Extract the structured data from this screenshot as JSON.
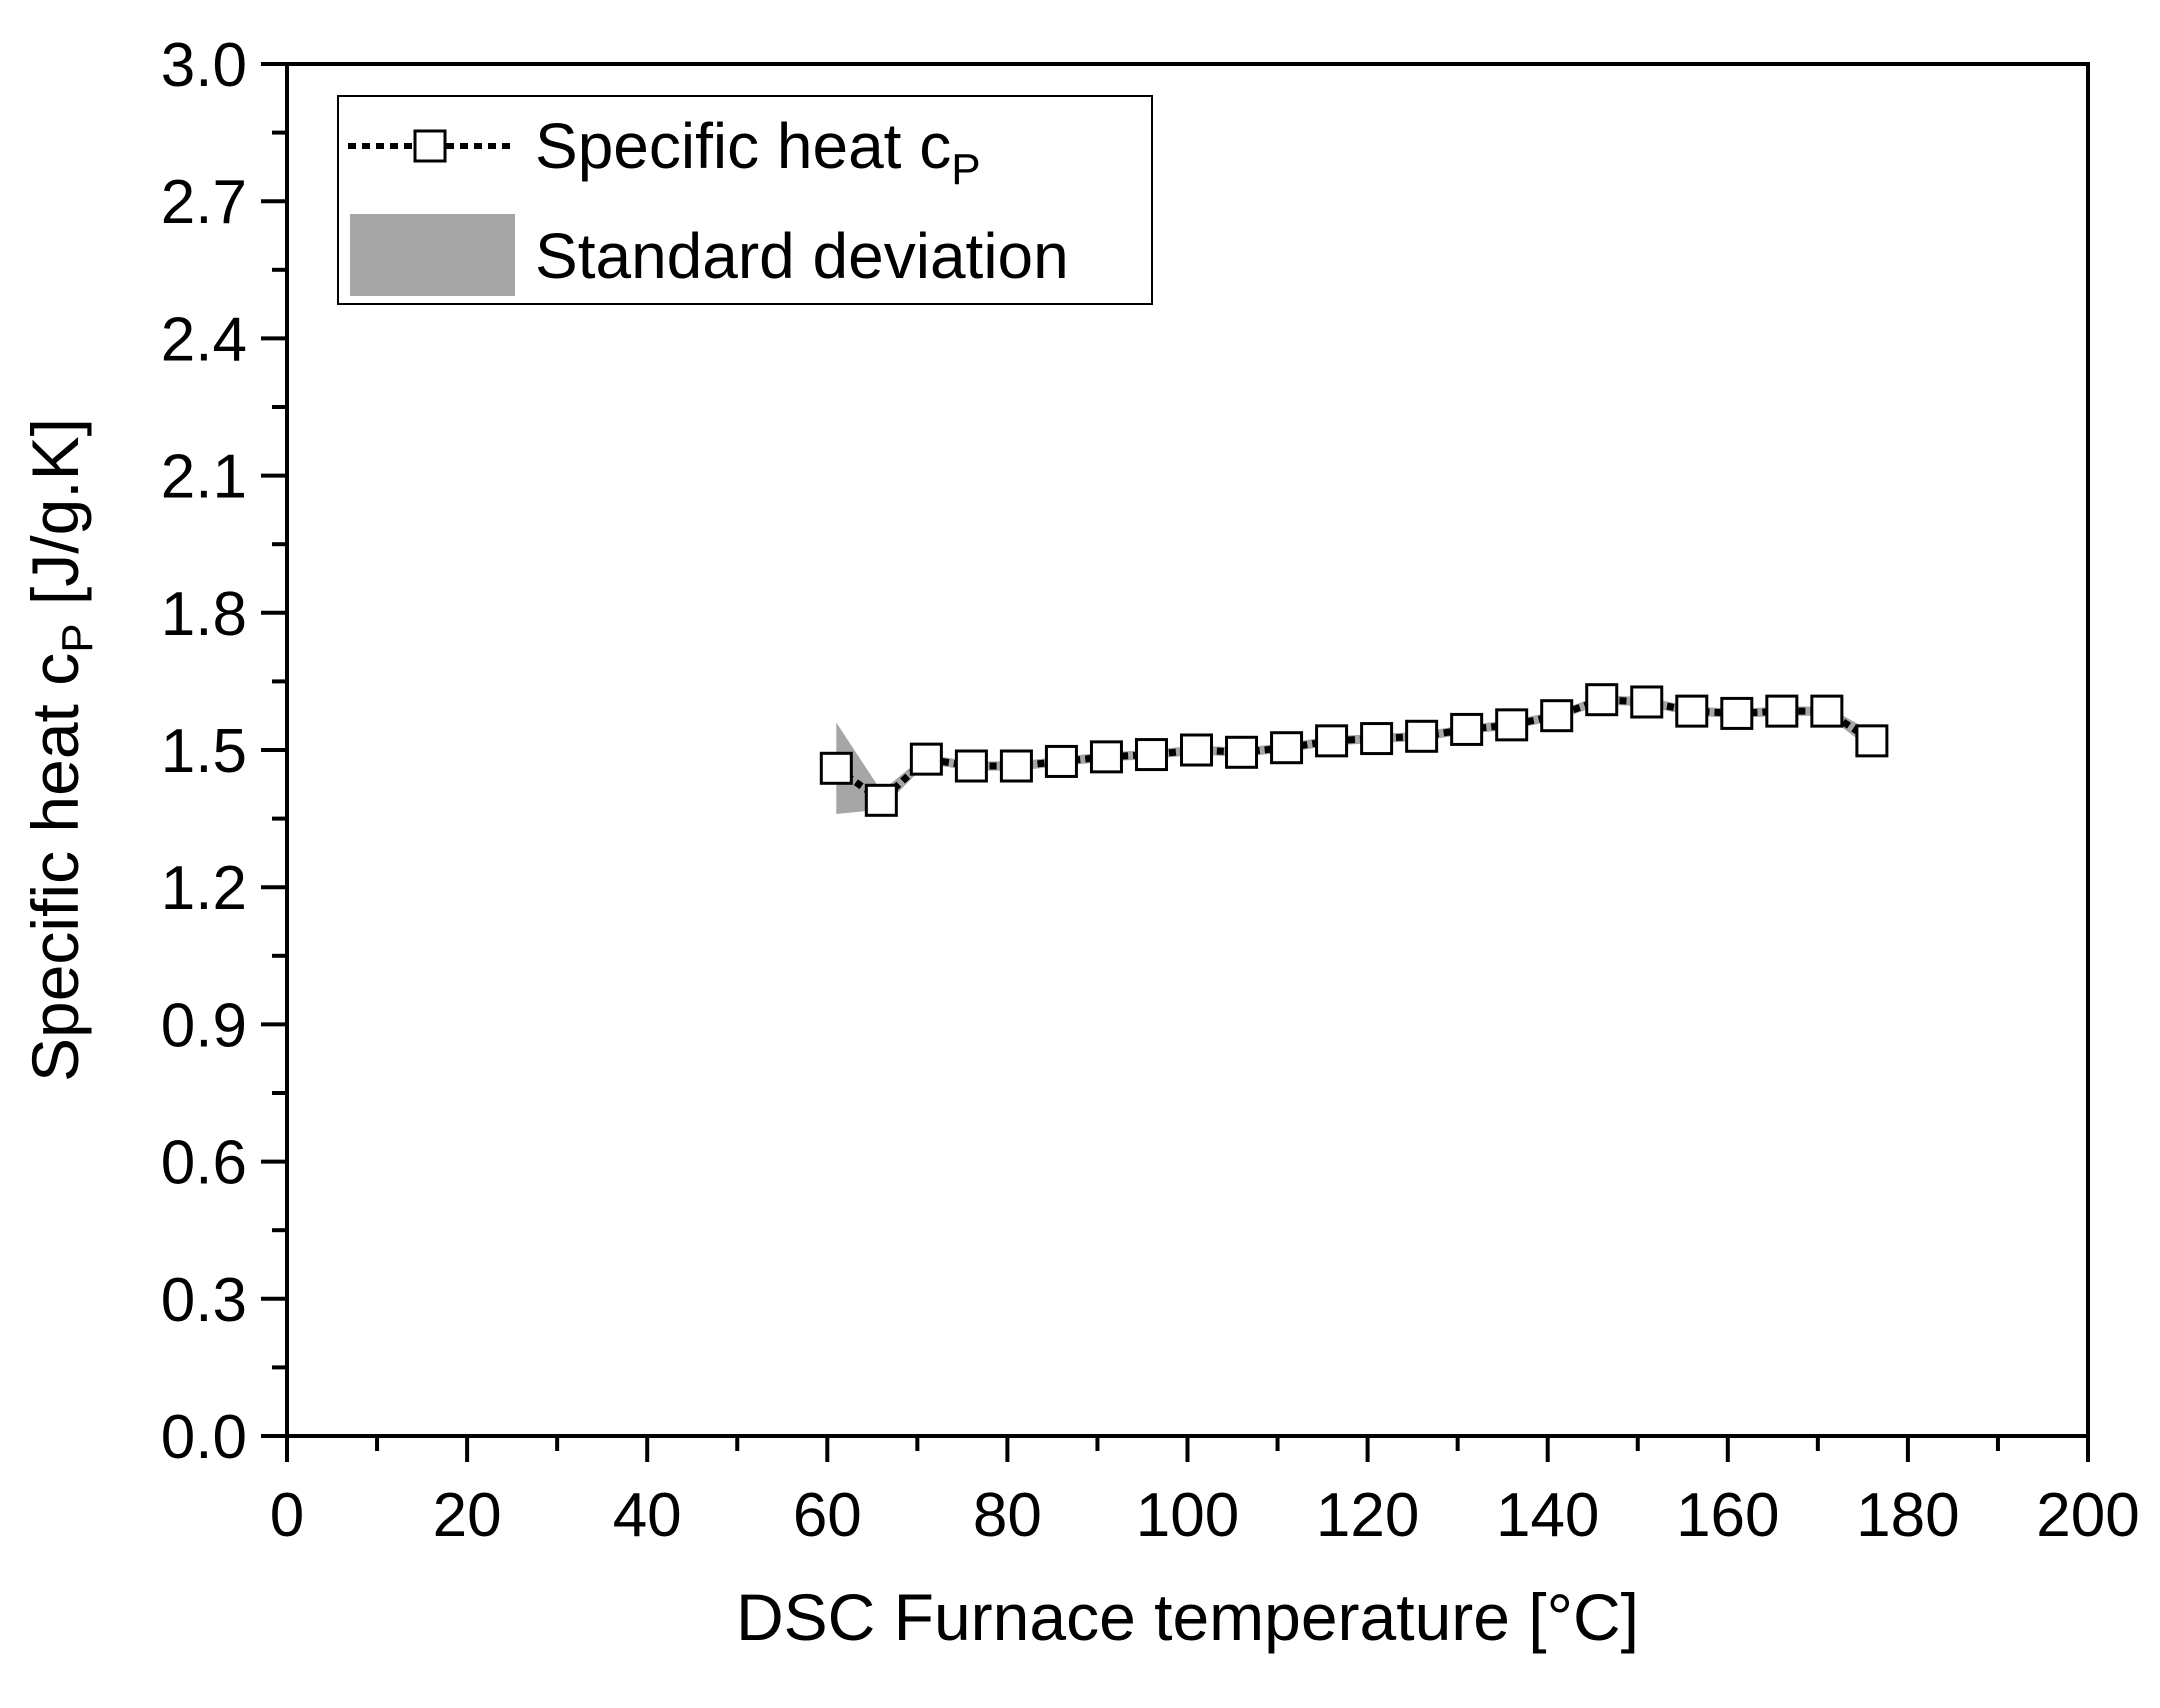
{
  "chart_data": {
    "type": "line",
    "xlabel": "DSC Furnace temperature [°C]",
    "ylabel_main": "Specific heat c",
    "ylabel_sub": "P",
    "ylabel_unit": " [J/g.K]",
    "xlim": [
      0,
      200
    ],
    "ylim": [
      0,
      3
    ],
    "x_ticks": [
      0,
      20,
      40,
      60,
      80,
      100,
      120,
      140,
      160,
      180,
      200
    ],
    "y_ticks": [
      0.0,
      0.3,
      0.6,
      0.9,
      1.2,
      1.5,
      1.8,
      2.1,
      2.4,
      2.7,
      3.0
    ],
    "x_tick_labels": [
      "0",
      "20",
      "40",
      "60",
      "80",
      "100",
      "120",
      "140",
      "160",
      "180",
      "200"
    ],
    "y_tick_labels": [
      "0.0",
      "0.3",
      "0.6",
      "0.9",
      "1.2",
      "1.5",
      "1.8",
      "2.1",
      "2.4",
      "2.7",
      "3.0"
    ],
    "grid": false,
    "legend_position": "top-left",
    "legend": {
      "series_main": "Specific heat c",
      "series_sub": "P",
      "band_label": "Standard deviation"
    },
    "colors": {
      "line": "#000000",
      "marker_fill": "#ffffff",
      "band": "#a6a6a6"
    },
    "series": [
      {
        "x": [
          61,
          66,
          71,
          76,
          81,
          86,
          91,
          96,
          101,
          106,
          111,
          116,
          121,
          126,
          131,
          136,
          141,
          146,
          151,
          156,
          161,
          166,
          171,
          176
        ],
        "y": [
          1.46,
          1.39,
          1.48,
          1.465,
          1.465,
          1.475,
          1.485,
          1.49,
          1.5,
          1.495,
          1.505,
          1.52,
          1.525,
          1.53,
          1.545,
          1.555,
          1.575,
          1.61,
          1.605,
          1.585,
          1.58,
          1.585,
          1.585,
          1.52
        ],
        "std_lower": [
          1.36,
          1.37,
          1.47,
          1.455,
          1.455,
          1.465,
          1.475,
          1.48,
          1.49,
          1.485,
          1.495,
          1.51,
          1.515,
          1.52,
          1.535,
          1.545,
          1.565,
          1.6,
          1.595,
          1.575,
          1.57,
          1.575,
          1.575,
          1.5
        ],
        "std_upper": [
          1.56,
          1.41,
          1.49,
          1.475,
          1.475,
          1.485,
          1.495,
          1.5,
          1.51,
          1.505,
          1.515,
          1.53,
          1.535,
          1.54,
          1.555,
          1.565,
          1.585,
          1.62,
          1.615,
          1.595,
          1.59,
          1.595,
          1.595,
          1.54
        ]
      }
    ]
  }
}
